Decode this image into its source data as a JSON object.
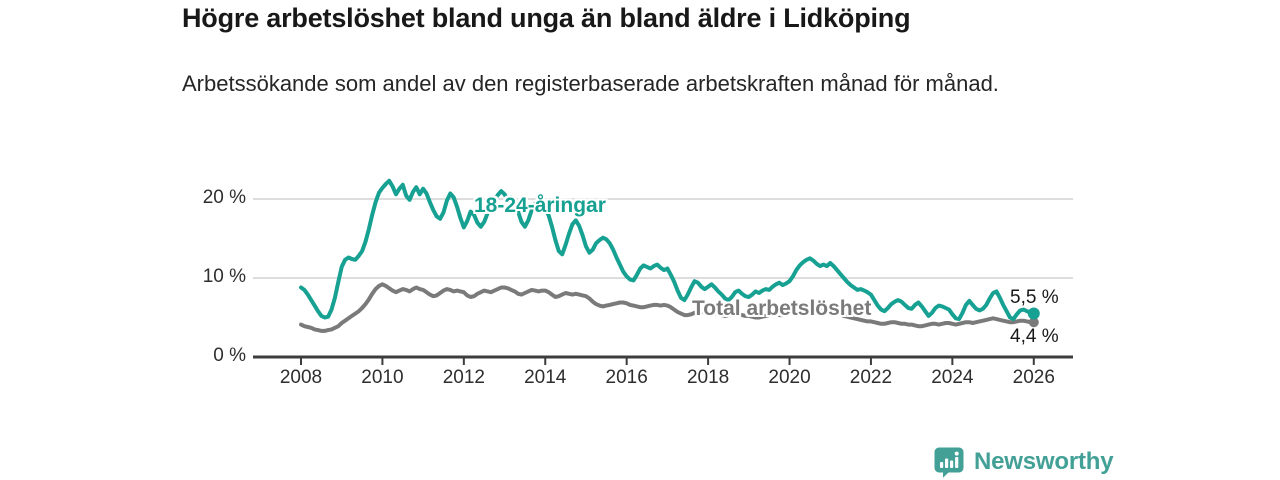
{
  "header": {
    "title": "Högre arbetslöshet bland unga än bland äldre i Lidköping",
    "subtitle": "Arbetssökande som andel av den registerbaserade arbetskraften månad för månad."
  },
  "branding": {
    "name": "Newsworthy",
    "color": "#42a096",
    "icon": "newsworthy-speech-bubble-bar-chart"
  },
  "chart_data": {
    "type": "line",
    "title": "Högre arbetslöshet bland unga än bland äldre i Lidköping",
    "x_start_year": 2008,
    "step_months": 1,
    "x_tick_years": [
      2008,
      2010,
      2012,
      2014,
      2016,
      2018,
      2020,
      2022,
      2024,
      2026
    ],
    "y_ticks": [
      {
        "value": 0,
        "label": "0 %"
      },
      {
        "value": 10,
        "label": "10 %"
      },
      {
        "value": 20,
        "label": "20 %"
      }
    ],
    "ylim": [
      0,
      23.5
    ],
    "xlim": [
      2007.8,
      2027.0
    ],
    "grid": "horizontal",
    "grid_color": "#d2d2d2",
    "axis_color": "#3c3c3c",
    "series": [
      {
        "id": "young",
        "name": "18-24-åringar",
        "color": "#16a192",
        "end_label": "5,5 %",
        "end_value": 5.5,
        "dot_radius": 6,
        "values": [
          8.8,
          8.5,
          7.9,
          7.2,
          6.5,
          5.8,
          5.2,
          5.0,
          5.1,
          6.0,
          7.5,
          9.5,
          11.4,
          12.3,
          12.6,
          12.4,
          12.3,
          12.8,
          13.4,
          14.6,
          16.2,
          18.0,
          19.6,
          20.8,
          21.4,
          21.9,
          22.3,
          21.6,
          20.6,
          21.3,
          21.8,
          20.4,
          19.9,
          20.9,
          21.5,
          20.6,
          21.3,
          20.7,
          19.6,
          18.6,
          17.8,
          17.5,
          18.3,
          19.8,
          20.7,
          20.2,
          19.0,
          17.6,
          16.4,
          17.2,
          18.4,
          18.0,
          17.0,
          16.5,
          17.1,
          18.2,
          19.2,
          19.9,
          20.5,
          21.0,
          20.6,
          19.8,
          20.2,
          19.6,
          18.4,
          17.1,
          16.5,
          17.3,
          18.6,
          19.4,
          19.0,
          18.6,
          18.8,
          17.9,
          16.5,
          14.8,
          13.4,
          13.0,
          14.2,
          15.6,
          16.8,
          17.3,
          16.6,
          15.4,
          14.0,
          13.2,
          13.6,
          14.4,
          14.8,
          15.1,
          14.9,
          14.4,
          13.6,
          12.6,
          11.7,
          10.8,
          10.2,
          9.8,
          9.7,
          10.4,
          11.2,
          11.6,
          11.4,
          11.2,
          11.5,
          11.7,
          11.3,
          11.0,
          11.2,
          10.4,
          9.5,
          8.4,
          7.5,
          7.2,
          7.9,
          8.8,
          9.6,
          9.4,
          8.9,
          8.6,
          8.9,
          9.2,
          8.8,
          8.3,
          7.9,
          7.4,
          7.2,
          7.6,
          8.2,
          8.4,
          8.0,
          7.7,
          7.6,
          7.9,
          8.3,
          8.1,
          8.4,
          8.6,
          8.5,
          8.9,
          9.2,
          9.4,
          9.1,
          9.3,
          9.6,
          10.2,
          11.0,
          11.6,
          12.0,
          12.3,
          12.5,
          12.2,
          11.8,
          11.5,
          11.7,
          11.5,
          11.9,
          11.5,
          11.0,
          10.5,
          10.0,
          9.5,
          9.1,
          8.8,
          8.5,
          8.6,
          8.4,
          8.2,
          7.9,
          7.2,
          6.5,
          6.0,
          5.8,
          6.2,
          6.7,
          7.0,
          7.2,
          7.0,
          6.6,
          6.2,
          6.1,
          6.6,
          6.9,
          6.4,
          5.8,
          5.2,
          5.6,
          6.2,
          6.5,
          6.4,
          6.2,
          6.0,
          5.4,
          4.9,
          4.8,
          5.6,
          6.6,
          7.1,
          6.6,
          6.1,
          5.9,
          6.1,
          6.6,
          7.4,
          8.1,
          8.3,
          7.5,
          6.6,
          5.8,
          5.0,
          4.8,
          5.4,
          5.9,
          6.0,
          5.8,
          5.6,
          5.5
        ]
      },
      {
        "id": "total",
        "name": "Total arbetslöshet",
        "color": "#7a7a7a",
        "end_label": "4,4 %",
        "end_value": 4.4,
        "dot_radius": 5,
        "values": [
          4.1,
          3.9,
          3.8,
          3.7,
          3.5,
          3.4,
          3.3,
          3.3,
          3.4,
          3.5,
          3.7,
          3.9,
          4.3,
          4.6,
          4.9,
          5.2,
          5.5,
          5.8,
          6.2,
          6.7,
          7.3,
          8.0,
          8.6,
          9.0,
          9.2,
          9.0,
          8.7,
          8.4,
          8.2,
          8.4,
          8.6,
          8.5,
          8.3,
          8.6,
          8.8,
          8.6,
          8.5,
          8.2,
          7.9,
          7.7,
          7.8,
          8.1,
          8.4,
          8.6,
          8.5,
          8.3,
          8.4,
          8.3,
          8.2,
          7.8,
          7.6,
          7.7,
          8.0,
          8.2,
          8.4,
          8.3,
          8.2,
          8.4,
          8.6,
          8.8,
          8.8,
          8.7,
          8.5,
          8.3,
          8.0,
          7.9,
          8.1,
          8.3,
          8.5,
          8.4,
          8.3,
          8.4,
          8.4,
          8.2,
          7.9,
          7.6,
          7.7,
          7.9,
          8.1,
          8.0,
          7.9,
          8.0,
          7.9,
          7.8,
          7.7,
          7.4,
          7.0,
          6.7,
          6.5,
          6.4,
          6.5,
          6.6,
          6.7,
          6.8,
          6.9,
          6.9,
          6.8,
          6.6,
          6.5,
          6.4,
          6.3,
          6.3,
          6.4,
          6.5,
          6.6,
          6.6,
          6.5,
          6.6,
          6.5,
          6.3,
          6.0,
          5.7,
          5.5,
          5.3,
          5.3,
          5.4,
          5.6,
          5.7,
          5.7,
          5.8,
          5.8,
          5.7,
          5.5,
          5.4,
          5.3,
          5.2,
          5.3,
          5.4,
          5.5,
          5.4,
          5.3,
          5.2,
          5.2,
          5.1,
          5.0,
          5.0,
          5.1,
          5.2,
          5.3,
          5.4,
          5.4,
          5.3,
          5.3,
          5.4,
          5.5,
          5.6,
          5.9,
          6.2,
          6.4,
          6.5,
          6.4,
          6.3,
          6.2,
          6.1,
          6.0,
          5.9,
          5.9,
          5.8,
          5.6,
          5.4,
          5.2,
          5.1,
          5.0,
          4.9,
          4.8,
          4.7,
          4.6,
          4.5,
          4.5,
          4.4,
          4.3,
          4.2,
          4.2,
          4.3,
          4.4,
          4.4,
          4.3,
          4.2,
          4.2,
          4.1,
          4.1,
          4.0,
          3.9,
          3.9,
          4.0,
          4.1,
          4.2,
          4.2,
          4.1,
          4.2,
          4.3,
          4.3,
          4.2,
          4.1,
          4.2,
          4.3,
          4.4,
          4.4,
          4.3,
          4.4,
          4.5,
          4.6,
          4.7,
          4.8,
          4.9,
          4.8,
          4.7,
          4.6,
          4.5,
          4.4,
          4.4,
          4.5,
          4.6,
          4.6,
          4.5,
          4.4,
          4.4
        ]
      }
    ]
  }
}
